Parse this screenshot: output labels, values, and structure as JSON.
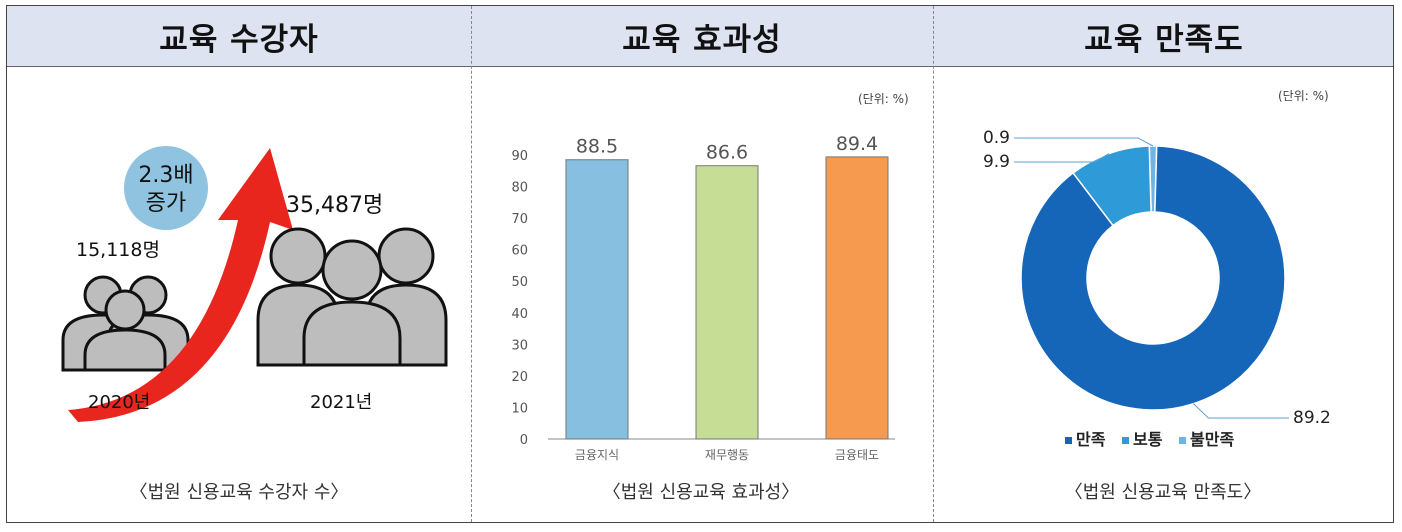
{
  "headers": [
    "교육  수강자",
    "교육  효과성",
    "교육  만족도"
  ],
  "panel1": {
    "badge_line1": "2.3배",
    "badge_line2": "증가",
    "count_2020": "15,118명",
    "count_2021": "35,487명",
    "year_2020": "2020년",
    "year_2021": "2021년",
    "caption": "〈법원 신용교육 수강자 수〉",
    "colors": {
      "arrow": "#e8261e",
      "badge": "#8fc3e0",
      "people": "#bdbdbd"
    }
  },
  "panel2": {
    "unit": "(단위: %)",
    "caption": "〈법원 신용교육 효과성〉"
  },
  "panel3": {
    "unit": "(단위: %)",
    "caption": "〈법원 신용교육 만족도〉",
    "legend": [
      "만족",
      "보통",
      "불만족"
    ]
  },
  "chart_data": [
    {
      "type": "bar",
      "categories": [
        "금융지식",
        "재무행동",
        "금융태도"
      ],
      "values": [
        88.5,
        86.6,
        89.4
      ],
      "colors": [
        "#86bfdf",
        "#c6dd96",
        "#f59a4f"
      ],
      "ylim": [
        0,
        90
      ],
      "yticks": [
        0,
        10,
        20,
        30,
        40,
        50,
        60,
        70,
        80,
        90
      ],
      "grid": false
    },
    {
      "type": "pie",
      "donut": true,
      "labels": [
        "만족",
        "보통",
        "불만족"
      ],
      "values": [
        89.2,
        9.9,
        0.9
      ],
      "colors": [
        "#1565b8",
        "#2e9bd8",
        "#6fb4e2"
      ],
      "legend_position": "bottom"
    }
  ]
}
